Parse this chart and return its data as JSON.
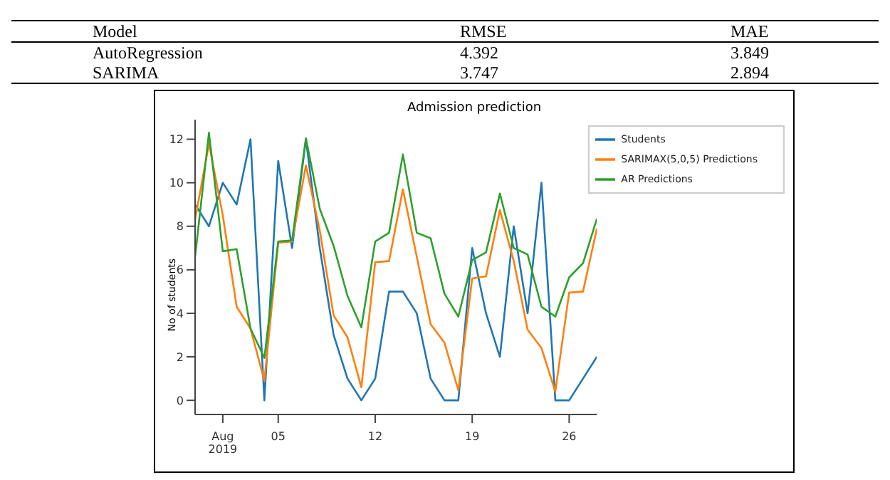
{
  "chart_data": {
    "type": "line",
    "title": "Admission prediction",
    "ylabel": "No of students",
    "annotations": [
      "Model",
      "RMSE",
      "MAE",
      "AutoRegression",
      "4.392",
      "3.849",
      "SARIMA",
      "3.747",
      "2.894"
    ],
    "x": [
      "2019-07-30",
      "2019-07-31",
      "2019-08-01",
      "2019-08-02",
      "2019-08-03",
      "2019-08-04",
      "2019-08-05",
      "2019-08-06",
      "2019-08-07",
      "2019-08-08",
      "2019-08-09",
      "2019-08-10",
      "2019-08-11",
      "2019-08-12",
      "2019-08-13",
      "2019-08-14",
      "2019-08-15",
      "2019-08-16",
      "2019-08-17",
      "2019-08-18",
      "2019-08-19",
      "2019-08-20",
      "2019-08-21",
      "2019-08-22",
      "2019-08-23",
      "2019-08-24",
      "2019-08-25",
      "2019-08-26",
      "2019-08-27",
      "2019-08-28"
    ],
    "series": [
      {
        "name": "Students",
        "color": "#1f77b4",
        "values": [
          9,
          8,
          10,
          9,
          12,
          0,
          11,
          7,
          12,
          7,
          3,
          1,
          0,
          1,
          5,
          5,
          4,
          1,
          0,
          0,
          7,
          4,
          2,
          8,
          4,
          10,
          0,
          0,
          1,
          2
        ]
      },
      {
        "name": "SARIMAX(5,0,5) Predictions",
        "color": "#ff7f0e",
        "values": [
          8.3,
          11.8,
          8.5,
          4.3,
          3.3,
          0.9,
          7.25,
          7.3,
          10.8,
          7.8,
          3.9,
          2.9,
          0.6,
          6.35,
          6.4,
          9.7,
          6.6,
          3.5,
          2.65,
          0.46,
          5.6,
          5.7,
          8.75,
          6.4,
          3.25,
          2.4,
          0.4,
          4.95,
          5.0,
          7.9
        ]
      },
      {
        "name": "AR Predictions",
        "color": "#2ca02c",
        "values": [
          6.6,
          12.3,
          6.85,
          6.95,
          3.3,
          1.95,
          7.3,
          7.35,
          12.05,
          8.8,
          7.1,
          4.8,
          3.35,
          7.3,
          7.7,
          11.3,
          7.7,
          7.45,
          4.9,
          3.85,
          6.45,
          6.8,
          9.5,
          7.0,
          6.7,
          4.3,
          3.85,
          5.65,
          6.3,
          8.35
        ]
      }
    ],
    "xlim": [
      "2019-07-30",
      "2019-08-28"
    ],
    "xticks": [
      {
        "value": "2019-08-01",
        "label": "Aug\n2019"
      },
      {
        "value": "2019-08-05",
        "label": "05"
      },
      {
        "value": "2019-08-12",
        "label": "12"
      },
      {
        "value": "2019-08-19",
        "label": "19"
      },
      {
        "value": "2019-08-26",
        "label": "26"
      }
    ],
    "ylim": [
      -0.65,
      12.9
    ],
    "yticks": [
      0,
      2,
      4,
      6,
      8,
      10,
      12
    ],
    "legend": "top right",
    "marker": "none",
    "line_style": "solid"
  }
}
